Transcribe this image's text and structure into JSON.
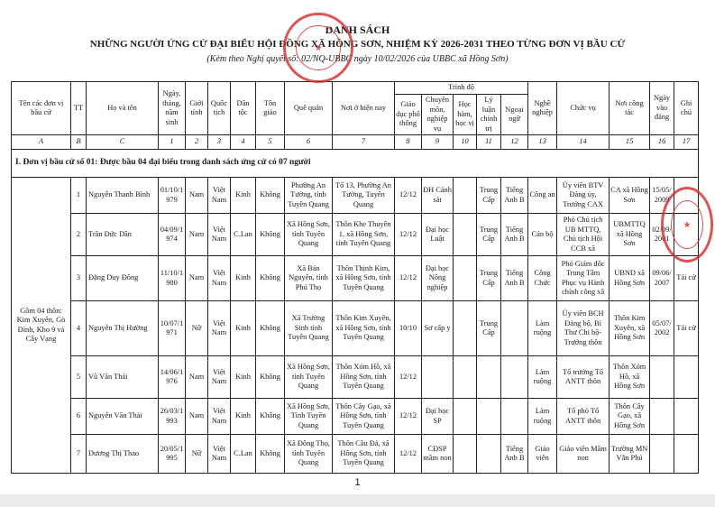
{
  "document": {
    "title_line1": "DANH SÁCH",
    "title_line2": "NHỮNG NGƯỜI ỨNG CỬ ĐẠI BIỂU HỘI ĐỒNG XÃ HỒNG SƠN, NHIỆM KỲ 2026-2031 THEO TỪNG ĐƠN VỊ BẦU CỬ",
    "subtitle": "(Kèm theo Nghị quyết số: 02/NQ-UBBC ngày 10/02/2026 của UBBC xã Hồng Sơn)",
    "page_number": "1",
    "stamp_color": "#d42a2a",
    "stamp_text": "ỦY BAN BẦU CỬ XÃ HỒNG SƠN - CỘNG HÒA X.H.C.N VIỆT NAM - TỈNH TUYÊN QUANG"
  },
  "table": {
    "headers": {
      "unit": "Tên các đơn vị bầu cử",
      "tt": "TT",
      "name": "Họ và tên",
      "dob": "Ngày, tháng, năm sinh",
      "gender": "Giới tính",
      "nationality": "Quốc tịch",
      "ethnicity": "Dân tộc",
      "religion": "Tôn giáo",
      "hometown": "Quê quán",
      "residence": "Nơi ở hiện nay",
      "education_group": "Trình độ",
      "general_edu": "Giáo dục phổ thông",
      "specialty": "Chuyên môn, nghiệp vụ",
      "degree": "Học hàm, học vị",
      "politics": "Lý luận chính trị",
      "language": "Ngoại ngữ",
      "occupation": "Nghề nghiệp",
      "position": "Chức vụ",
      "workplace": "Nơi công tác",
      "party_date": "Ngày vào đảng",
      "note": "Ghi chú"
    },
    "column_numbers": [
      "A",
      "B",
      "C",
      "1",
      "2",
      "3",
      "4",
      "5",
      "6",
      "7",
      "8",
      "9",
      "10",
      "11",
      "12",
      "13",
      "14",
      "15",
      "16",
      "17"
    ],
    "section_title": "I. Đơn vị bầu cử số 01: Được bầu 04 đại biểu trong danh sách ứng cử có 07 người",
    "unit_description": "Gồm 04 thôn: Kim Xuyên, Gò Đình, Kho 9 và Cây Vạng",
    "rows": [
      {
        "tt": "1",
        "name": "Nguyễn Thanh Bình",
        "dob": "01/10/1979",
        "gender": "Nam",
        "nationality": "Việt Nam",
        "ethnicity": "Kinh",
        "religion": "Không",
        "hometown": "Phường An Tường, tỉnh Tuyên Quang",
        "residence": "Tổ 13, Phường An Tường, Tuyên Quang",
        "general_edu": "12/12",
        "specialty": "ĐH Cảnh sát",
        "degree": "",
        "politics": "Trung Cấp",
        "language": "Tiếng Anh B",
        "occupation": "Công an",
        "position": "Ủy viên BTV Đảng ủy, Trưởng CAX",
        "workplace": "CA xã Hồng Sơn",
        "party_date": "15/05/2009",
        "note": ""
      },
      {
        "tt": "2",
        "name": "Trần Đức Dần",
        "dob": "04/09/1974",
        "gender": "Nam",
        "nationality": "Việt Nam",
        "ethnicity": "C.Lan",
        "religion": "Không",
        "hometown": "Xã Hồng Sơn, tỉnh Tuyên Quang",
        "residence": "Thôn Khe Thuyền 1, xã Hồng Sơn, tỉnh Tuyên Quang",
        "general_edu": "12/12",
        "specialty": "Đại học Luật",
        "degree": "",
        "politics": "Trung Cấp",
        "language": "Tiếng Anh B",
        "occupation": "Cán bộ",
        "position": "Phó Chủ tịch UB MTTQ, Chủ tịch Hội CCB xã",
        "workplace": "UBMTTQ xã Hồng Sơn",
        "party_date": "02/09/2001",
        "note": ""
      },
      {
        "tt": "3",
        "name": "Đặng Duy Đông",
        "dob": "11/10/1980",
        "gender": "Nam",
        "nationality": "Việt Nam",
        "ethnicity": "Kinh",
        "religion": "Không",
        "hometown": "Xã Bản Nguyên, tỉnh Phú Thọ",
        "residence": "Thôn Thịnh Kim, xã Hồng Sơn, tỉnh Tuyên Quang",
        "general_edu": "12/12",
        "specialty": "Đại học Nông nghiệp",
        "degree": "",
        "politics": "Trung Cấp",
        "language": "Tiếng Anh B",
        "occupation": "Công Chức",
        "position": "Phó Giám đốc Trung Tâm Phục vụ Hành chính công xã",
        "workplace": "UBND xã Hồng Sơn",
        "party_date": "09/06/2007",
        "note": "Tái cử"
      },
      {
        "tt": "4",
        "name": "Nguyễn Thị Hường",
        "dob": "10/07/1971",
        "gender": "Nữ",
        "nationality": "Việt Nam",
        "ethnicity": "Kinh",
        "religion": "Không",
        "hometown": "Xã Trường Sinh tỉnh Tuyên Quang",
        "residence": "Thôn Kim Xuyên, xã Hồng Sơn, tỉnh Tuyên Quang",
        "general_edu": "10/10",
        "specialty": "Sơ cấp y",
        "degree": "",
        "politics": "Trung Cấp",
        "language": "",
        "occupation": "Làm ruộng",
        "position": "Ủy viên BCH Đảng bộ, Bí Thư Chi bộ-Trưởng thôn",
        "workplace": "Thôn Kim Xuyên, xã Hồng Sơn",
        "party_date": "05/07/2002",
        "note": "Tái cử"
      },
      {
        "tt": "5",
        "name": "Vũ Văn Thái",
        "dob": "14/06/1976",
        "gender": "Nam",
        "nationality": "Việt Nam",
        "ethnicity": "Kinh",
        "religion": "Không",
        "hometown": "Xã Hồng Sơn, tỉnh Tuyên Quang",
        "residence": "Thôn Xóm Hồ, xã Hồng Sơn, tỉnh Tuyên Quang",
        "general_edu": "12/12",
        "specialty": "",
        "degree": "",
        "politics": "",
        "language": "",
        "occupation": "Làm ruộng",
        "position": "Tổ trưởng Tổ ANTT thôn",
        "workplace": "Thôn Xóm Hồ, xã Hồng Sơn",
        "party_date": "",
        "note": ""
      },
      {
        "tt": "6",
        "name": "Nguyễn Văn Thái",
        "dob": "26/03/1993",
        "gender": "Nam",
        "nationality": "Việt Nam",
        "ethnicity": "Kinh",
        "religion": "Không",
        "hometown": "Xã Hồng Sơn, Tỉnh Tuyên Quang",
        "residence": "Thôn Cây Gạo, xã Hồng Sơn, tỉnh Tuyên Quang",
        "general_edu": "12/12",
        "specialty": "Đại học SP",
        "degree": "",
        "politics": "",
        "language": "",
        "occupation": "Làm ruộng",
        "position": "Tổ phó Tổ ANTT thôn",
        "workplace": "Thôn Cây Gạo, xã Hồng Sơn",
        "party_date": "",
        "note": ""
      },
      {
        "tt": "7",
        "name": "Dương Thị Thao",
        "dob": "20/05/1995",
        "gender": "Nữ",
        "nationality": "Việt Nam",
        "ethnicity": "C.Lan",
        "religion": "Không",
        "hometown": "Xã Đông Thọ, tỉnh Tuyên Quang",
        "residence": "Thôn Cầu Đá, xã Hồng Sơn, tỉnh Tuyên Quang",
        "general_edu": "12/12",
        "specialty": "CĐSP mầm non",
        "degree": "",
        "politics": "",
        "language": "Tiếng Anh B",
        "occupation": "Giáo viên",
        "position": "Giáo viên Mầm non",
        "workplace": "Trường MN Vân Phú",
        "party_date": "",
        "note": ""
      }
    ]
  }
}
